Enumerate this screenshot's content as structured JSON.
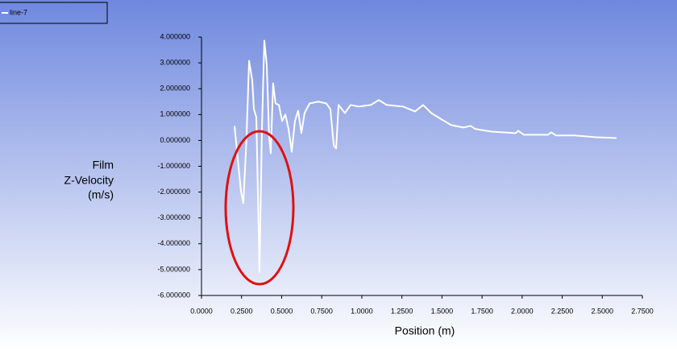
{
  "chart_data": {
    "type": "line",
    "xlabel": "Position (m)",
    "ylabel": [
      "Film",
      "Z-Velocity",
      "(m/s)"
    ],
    "x": [
      0.206,
      0.246,
      0.261,
      0.28,
      0.297,
      0.317,
      0.327,
      0.342,
      0.362,
      0.377,
      0.392,
      0.407,
      0.422,
      0.432,
      0.447,
      0.462,
      0.483,
      0.503,
      0.523,
      0.543,
      0.563,
      0.583,
      0.603,
      0.623,
      0.643,
      0.674,
      0.729,
      0.779,
      0.804,
      0.825,
      0.84,
      0.855,
      0.895,
      0.93,
      0.98,
      1.056,
      1.106,
      1.156,
      1.257,
      1.332,
      1.383,
      1.433,
      1.498,
      1.559,
      1.634,
      1.679,
      1.709,
      1.81,
      1.96,
      1.976,
      2.011,
      2.162,
      2.182,
      2.212,
      2.328,
      2.464,
      2.589
    ],
    "series": [
      {
        "name": "line-7",
        "color": "#ffffff",
        "values": [
          0.56,
          -1.96,
          -2.43,
          -0.03,
          3.08,
          2.3,
          1.21,
          0.9,
          -5.1,
          0.44,
          3.86,
          2.93,
          0.12,
          -0.5,
          2.21,
          1.43,
          1.37,
          0.75,
          1.0,
          0.44,
          -0.44,
          0.75,
          1.15,
          0.28,
          1.06,
          1.43,
          1.5,
          1.43,
          1.21,
          -0.19,
          -0.31,
          1.37,
          1.06,
          1.37,
          1.31,
          1.37,
          1.56,
          1.37,
          1.31,
          1.12,
          1.37,
          1.06,
          0.81,
          0.59,
          0.5,
          0.56,
          0.44,
          0.34,
          0.28,
          0.37,
          0.22,
          0.22,
          0.31,
          0.19,
          0.19,
          0.12,
          0.09
        ]
      }
    ],
    "xlim": [
      0,
      2.75
    ],
    "xticks": [
      {
        "value": 0,
        "label": "0.0000"
      },
      {
        "value": 0.25,
        "label": "0.2500"
      },
      {
        "value": 0.5,
        "label": "0.5000"
      },
      {
        "value": 0.75,
        "label": "0.7500"
      },
      {
        "value": 1,
        "label": "1.0000"
      },
      {
        "value": 1.25,
        "label": "1.2500"
      },
      {
        "value": 1.5,
        "label": "1.5000"
      },
      {
        "value": 1.75,
        "label": "1.7500"
      },
      {
        "value": 2,
        "label": "2.0000"
      },
      {
        "value": 2.25,
        "label": "2.2500"
      },
      {
        "value": 2.5,
        "label": "2.5000"
      },
      {
        "value": 2.75,
        "label": "2.7500"
      }
    ],
    "ylim": [
      -6,
      4
    ],
    "yticks": [
      {
        "value": 4,
        "label": "4.000000"
      },
      {
        "value": 3,
        "label": "3.000000"
      },
      {
        "value": 2,
        "label": "2.000000"
      },
      {
        "value": 1,
        "label": "1.000000"
      },
      {
        "value": 0,
        "label": "0.000000"
      },
      {
        "value": -1,
        "label": "-1.000000"
      },
      {
        "value": -2,
        "label": "-2.000000"
      },
      {
        "value": -3,
        "label": "-3.000000"
      },
      {
        "value": -4,
        "label": "-4.000000"
      },
      {
        "value": -5,
        "label": "-5.000000"
      },
      {
        "value": -6,
        "label": "-6.000000"
      }
    ],
    "grid": false
  }
}
